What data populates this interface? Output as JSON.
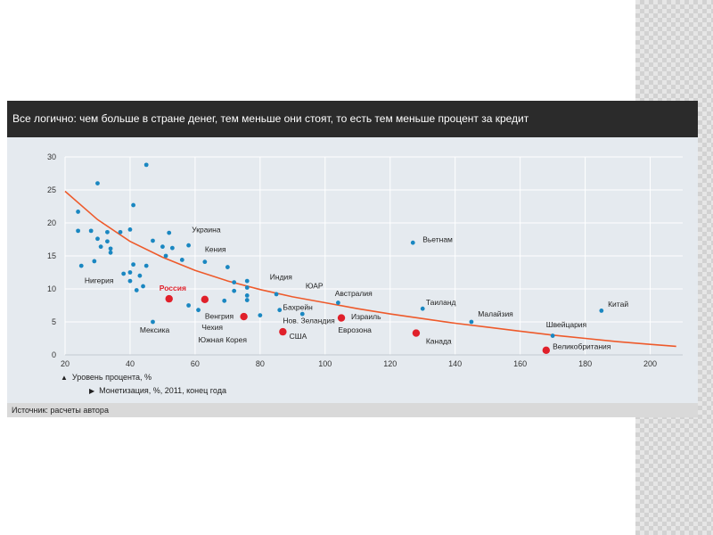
{
  "title": "Все логично: чем больше в стране денег, тем меньше они стоят, то есть тем меньше процент за кредит",
  "legend": {
    "y_label": "Уровень процента, %",
    "y_glyph": "▲",
    "x_label": "Монетизация, %, 2011, конец года",
    "x_glyph": "▶"
  },
  "source": "Источник: расчеты автора",
  "colors": {
    "point": "#1a87c1",
    "highlight": "#e0202a",
    "trend": "#ee5a2b",
    "grid": "#ffffff",
    "chart_bg": "#e5eaef"
  },
  "chart_data": {
    "type": "scatter",
    "title": "Все логично: чем больше в стране денег, тем меньше они стоят, то есть тем меньше процент за кредит",
    "xlabel": "Монетизация, %, 2011, конец года",
    "ylabel": "Уровень процента, %",
    "xlim": [
      20,
      210
    ],
    "ylim": [
      0,
      30
    ],
    "x_ticks": [
      20,
      40,
      60,
      80,
      100,
      120,
      140,
      160,
      180,
      200
    ],
    "y_ticks": [
      0,
      5,
      10,
      15,
      20,
      25,
      30
    ],
    "grid": true,
    "points": [
      {
        "x": 45,
        "y": 28.8
      },
      {
        "x": 30,
        "y": 26
      },
      {
        "x": 41,
        "y": 22.7
      },
      {
        "x": 24,
        "y": 21.7
      },
      {
        "x": 24,
        "y": 18.8
      },
      {
        "x": 28,
        "y": 18.8
      },
      {
        "x": 33,
        "y": 18.6
      },
      {
        "x": 37,
        "y": 18.6
      },
      {
        "x": 40,
        "y": 19
      },
      {
        "x": 30,
        "y": 17.6
      },
      {
        "x": 33,
        "y": 17.2
      },
      {
        "x": 31,
        "y": 16.4
      },
      {
        "x": 34,
        "y": 16.1
      },
      {
        "x": 34,
        "y": 15.5
      },
      {
        "x": 47,
        "y": 17.3
      },
      {
        "x": 50,
        "y": 16.4
      },
      {
        "x": 52,
        "y": 18.5
      },
      {
        "x": 53,
        "y": 16.2
      },
      {
        "x": 58,
        "y": 16.6
      },
      {
        "x": 51,
        "y": 15
      },
      {
        "x": 56,
        "y": 14.4
      },
      {
        "x": 63,
        "y": 14.1
      },
      {
        "x": 25,
        "y": 13.5
      },
      {
        "x": 29,
        "y": 14.2
      },
      {
        "x": 41,
        "y": 13.7
      },
      {
        "x": 45,
        "y": 13.5
      },
      {
        "x": 38,
        "y": 12.3
      },
      {
        "x": 40,
        "y": 12.5
      },
      {
        "x": 43,
        "y": 12
      },
      {
        "x": 40,
        "y": 11.2
      },
      {
        "x": 44,
        "y": 10.4
      },
      {
        "x": 42,
        "y": 9.8
      },
      {
        "x": 70,
        "y": 13.3
      },
      {
        "x": 72,
        "y": 11
      },
      {
        "x": 72,
        "y": 9.7
      },
      {
        "x": 76,
        "y": 11.2
      },
      {
        "x": 76,
        "y": 10.2
      },
      {
        "x": 76,
        "y": 9
      },
      {
        "x": 85,
        "y": 9.2
      },
      {
        "x": 69,
        "y": 8.2
      },
      {
        "x": 58,
        "y": 7.5
      },
      {
        "x": 61,
        "y": 6.8
      },
      {
        "x": 76,
        "y": 8.3
      },
      {
        "x": 80,
        "y": 6
      },
      {
        "x": 86,
        "y": 6.8
      },
      {
        "x": 93,
        "y": 6.2
      },
      {
        "x": 47,
        "y": 5
      },
      {
        "x": 104,
        "y": 7.9
      },
      {
        "x": 127,
        "y": 17
      },
      {
        "x": 130,
        "y": 7
      },
      {
        "x": 145,
        "y": 5
      },
      {
        "x": 185,
        "y": 6.7
      },
      {
        "x": 170,
        "y": 2.9
      }
    ],
    "highlighted": [
      {
        "x": 52,
        "y": 8.5
      },
      {
        "x": 63,
        "y": 8.4
      },
      {
        "x": 75,
        "y": 5.8
      },
      {
        "x": 87,
        "y": 3.5
      },
      {
        "x": 105,
        "y": 5.6
      },
      {
        "x": 128,
        "y": 3.3
      },
      {
        "x": 168,
        "y": 0.7
      }
    ],
    "labels": [
      {
        "text": "Украина",
        "x": 59,
        "y": 18.6
      },
      {
        "text": "Кения",
        "x": 63,
        "y": 15.6
      },
      {
        "text": "Нигерия",
        "x": 26,
        "y": 10.9
      },
      {
        "text": "Индия",
        "x": 83,
        "y": 11.4
      },
      {
        "text": "ЮАР",
        "x": 94,
        "y": 10.1
      },
      {
        "text": "Россия",
        "x": 49,
        "y": 9.7
      },
      {
        "text": "Вьетнам",
        "x": 130,
        "y": 17.1
      },
      {
        "text": "Австралия",
        "x": 103,
        "y": 8.9
      },
      {
        "text": "Таиланд",
        "x": 131,
        "y": 7.6
      },
      {
        "text": "Малайзия",
        "x": 147,
        "y": 5.8
      },
      {
        "text": "Китай",
        "x": 187,
        "y": 7.3
      },
      {
        "text": "Бахрейн",
        "x": 87,
        "y": 6.8
      },
      {
        "text": "Нов. Зеландия",
        "x": 87,
        "y": 4.8
      },
      {
        "text": "Израиль",
        "x": 108,
        "y": 5.4
      },
      {
        "text": "Еврозона",
        "x": 104,
        "y": 3.4
      },
      {
        "text": "Венгрия",
        "x": 63,
        "y": 5.5
      },
      {
        "text": "Чехия",
        "x": 62,
        "y": 3.8
      },
      {
        "text": "Мексика",
        "x": 43,
        "y": 3.4
      },
      {
        "text": "Южная Корея",
        "x": 61,
        "y": 1.9
      },
      {
        "text": "США",
        "x": 89,
        "y": 2.4
      },
      {
        "text": "Канада",
        "x": 131,
        "y": 1.7
      },
      {
        "text": "Швейцария",
        "x": 168,
        "y": 4.2
      },
      {
        "text": "Великобритания",
        "x": 170,
        "y": 0.9
      }
    ],
    "trend": [
      {
        "x": 20,
        "y": 24.8
      },
      {
        "x": 30,
        "y": 20.5
      },
      {
        "x": 40,
        "y": 17.2
      },
      {
        "x": 50,
        "y": 14.8
      },
      {
        "x": 60,
        "y": 12.8
      },
      {
        "x": 70,
        "y": 11.2
      },
      {
        "x": 80,
        "y": 9.9
      },
      {
        "x": 90,
        "y": 8.8
      },
      {
        "x": 100,
        "y": 7.9
      },
      {
        "x": 110,
        "y": 7.0
      },
      {
        "x": 120,
        "y": 6.2
      },
      {
        "x": 130,
        "y": 5.5
      },
      {
        "x": 140,
        "y": 4.8
      },
      {
        "x": 150,
        "y": 4.2
      },
      {
        "x": 160,
        "y": 3.6
      },
      {
        "x": 170,
        "y": 3.0
      },
      {
        "x": 180,
        "y": 2.5
      },
      {
        "x": 190,
        "y": 2.0
      },
      {
        "x": 200,
        "y": 1.6
      },
      {
        "x": 208,
        "y": 1.3
      }
    ]
  }
}
